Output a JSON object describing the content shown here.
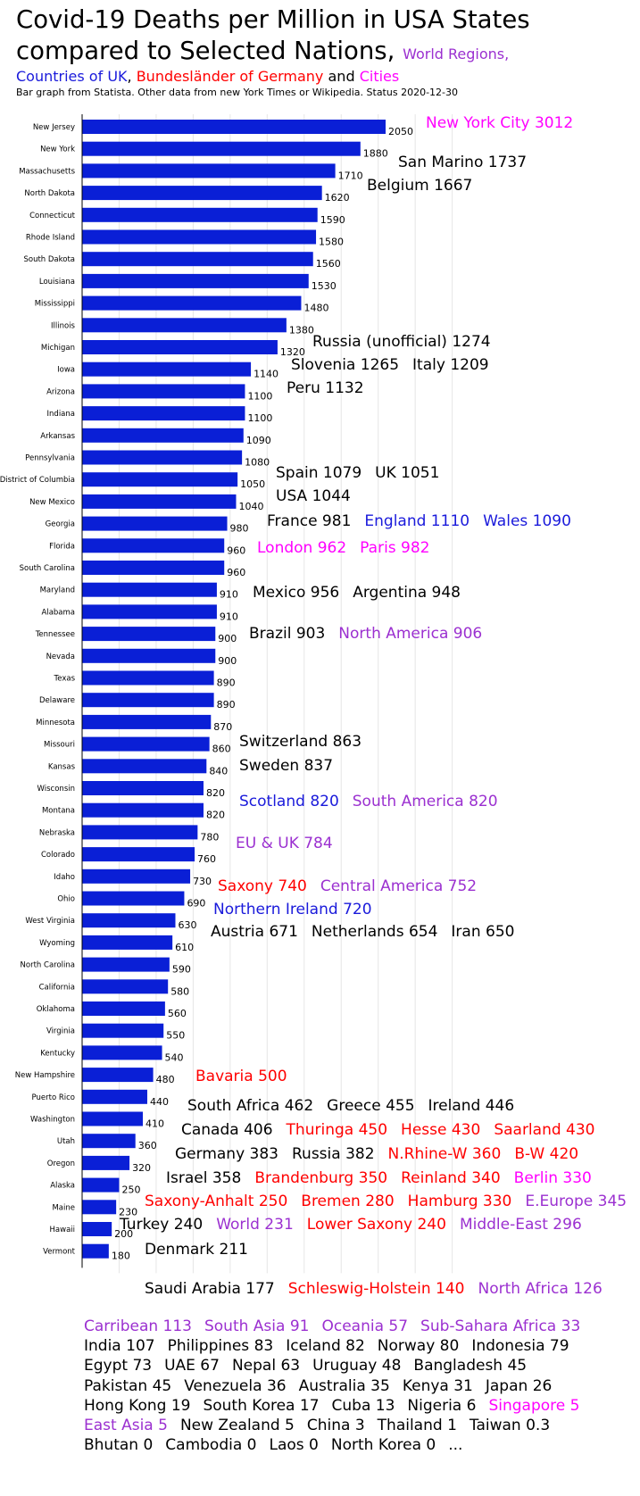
{
  "colors": {
    "bar": "#0a1fd6",
    "country": "#000000",
    "uk": "#1a1adb",
    "germany": "#ff0000",
    "city": "#ff00ff",
    "region": "#9b30d0",
    "grid": "#e6e6e6"
  },
  "title": {
    "line1": "Covid-19 Deaths per Million in USA States",
    "line2_main": "compared to Selected Nations,",
    "line2_regions": "World Regions,",
    "line3_uk": "Countries of UK",
    "line3_sep1": ",",
    "line3_germany": "Bundesländer of Germany",
    "line3_and": "and",
    "line3_cities": "Cities",
    "source": "Bar graph from Statista. Other data from new York Times or Wikipedia. Status 2020-12-30"
  },
  "chart_data": {
    "type": "bar",
    "orientation": "horizontal",
    "categories": [
      "New Jersey",
      "New York",
      "Massachusetts",
      "North Dakota",
      "Connecticut",
      "Rhode Island",
      "South Dakota",
      "Louisiana",
      "Mississippi",
      "Illinois",
      "Michigan",
      "Iowa",
      "Arizona",
      "Indiana",
      "Arkansas",
      "Pennsylvania",
      "District of Columbia",
      "New Mexico",
      "Georgia",
      "Florida",
      "South Carolina",
      "Maryland",
      "Alabama",
      "Tennessee",
      "Nevada",
      "Texas",
      "Delaware",
      "Minnesota",
      "Missouri",
      "Kansas",
      "Wisconsin",
      "Montana",
      "Nebraska",
      "Colorado",
      "Idaho",
      "Ohio",
      "West Virginia",
      "Wyoming",
      "North Carolina",
      "California",
      "Oklahoma",
      "Virginia",
      "Kentucky",
      "New Hampshire",
      "Puerto Rico",
      "Washington",
      "Utah",
      "Oregon",
      "Alaska",
      "Maine",
      "Hawaii",
      "Vermont"
    ],
    "values": [
      2050,
      1880,
      1710,
      1620,
      1590,
      1580,
      1560,
      1530,
      1480,
      1380,
      1320,
      1140,
      1100,
      1100,
      1090,
      1080,
      1050,
      1040,
      980,
      960,
      960,
      910,
      910,
      900,
      900,
      890,
      890,
      870,
      860,
      840,
      820,
      820,
      780,
      760,
      730,
      690,
      630,
      610,
      590,
      580,
      560,
      550,
      540,
      480,
      440,
      410,
      360,
      320,
      250,
      230,
      200,
      180
    ],
    "xlim": [
      0,
      2500
    ],
    "grid": true,
    "legend": "none"
  },
  "comparisons": [
    [
      {
        "t": "New York City 3012",
        "c": "city"
      }
    ],
    [
      {
        "t": "San Marino 1737",
        "c": "country"
      }
    ],
    [
      {
        "t": "Belgium 1667",
        "c": "country"
      }
    ],
    [
      {
        "t": "Russia (unofficial) 1274",
        "c": "country"
      }
    ],
    [
      {
        "t": "Slovenia 1265",
        "c": "country"
      },
      {
        "t": "Italy 1209",
        "c": "country"
      }
    ],
    [
      {
        "t": "Peru 1132",
        "c": "country"
      }
    ],
    [
      {
        "t": "Spain 1079",
        "c": "country"
      },
      {
        "t": "UK 1051",
        "c": "country"
      }
    ],
    [
      {
        "t": "USA 1044",
        "c": "country"
      }
    ],
    [
      {
        "t": "France 981",
        "c": "country"
      },
      {
        "t": "England 1110",
        "c": "uk"
      },
      {
        "t": "Wales 1090",
        "c": "uk"
      }
    ],
    [
      {
        "t": "London 962",
        "c": "city"
      },
      {
        "t": "Paris 982",
        "c": "city"
      }
    ],
    [
      {
        "t": "Mexico 956",
        "c": "country"
      },
      {
        "t": "Argentina 948",
        "c": "country"
      }
    ],
    [
      {
        "t": "Brazil 903",
        "c": "country"
      },
      {
        "t": "North America 906",
        "c": "region"
      }
    ],
    [
      {
        "t": "Switzerland 863",
        "c": "country"
      }
    ],
    [
      {
        "t": "Sweden 837",
        "c": "country"
      }
    ],
    [
      {
        "t": "Scotland 820",
        "c": "uk"
      },
      {
        "t": "South America 820",
        "c": "region"
      }
    ],
    [
      {
        "t": "EU & UK 784",
        "c": "region"
      }
    ],
    [
      {
        "t": "Saxony 740",
        "c": "germany"
      },
      {
        "t": "Central America 752",
        "c": "region"
      }
    ],
    [
      {
        "t": "Northern Ireland 720",
        "c": "uk"
      }
    ],
    [
      {
        "t": "Austria 671",
        "c": "country"
      },
      {
        "t": "Netherlands 654",
        "c": "country"
      },
      {
        "t": "Iran 650",
        "c": "country"
      }
    ],
    [
      {
        "t": "Bavaria 500",
        "c": "germany"
      }
    ],
    [
      {
        "t": "South Africa 462",
        "c": "country"
      },
      {
        "t": "Greece 455",
        "c": "country"
      },
      {
        "t": "Ireland 446",
        "c": "country"
      }
    ],
    [
      {
        "t": "Canada 406",
        "c": "country"
      },
      {
        "t": "Thuringa 450",
        "c": "germany"
      },
      {
        "t": "Hesse 430",
        "c": "germany"
      },
      {
        "t": "Saarland 430",
        "c": "germany"
      }
    ],
    [
      {
        "t": "Germany 383",
        "c": "country"
      },
      {
        "t": "Russia 382",
        "c": "country"
      },
      {
        "t": "N.Rhine-W 360",
        "c": "germany"
      },
      {
        "t": "B-W 420",
        "c": "germany"
      }
    ],
    [
      {
        "t": "Israel 358",
        "c": "country"
      },
      {
        "t": "Brandenburg 350",
        "c": "germany"
      },
      {
        "t": "Reinland 340",
        "c": "germany"
      },
      {
        "t": "Berlin 330",
        "c": "city"
      }
    ],
    [
      {
        "t": "Saxony-Anhalt 250",
        "c": "germany"
      },
      {
        "t": "Bremen 280",
        "c": "germany"
      },
      {
        "t": "Hamburg 330",
        "c": "germany"
      },
      {
        "t": "E.Europe 345",
        "c": "region"
      }
    ],
    [
      {
        "t": "Turkey 240",
        "c": "country"
      },
      {
        "t": "World 231",
        "c": "region"
      },
      {
        "t": "Lower Saxony 240",
        "c": "germany"
      },
      {
        "t": "Middle-East 296",
        "c": "region"
      }
    ],
    [
      {
        "t": "Denmark 211",
        "c": "country"
      }
    ],
    [
      {
        "t": "Saudi Arabia 177",
        "c": "country"
      },
      {
        "t": "Schleswig-Holstein 140",
        "c": "germany"
      },
      {
        "t": "North Africa 126",
        "c": "region"
      }
    ]
  ],
  "footer": [
    [
      {
        "t": "Carribean 113",
        "c": "region"
      },
      {
        "t": "South Asia 91",
        "c": "region"
      },
      {
        "t": "Oceania 57",
        "c": "region"
      },
      {
        "t": "Sub-Sahara Africa 33",
        "c": "region"
      }
    ],
    [
      {
        "t": "India 107",
        "c": "country"
      },
      {
        "t": "Philippines 83",
        "c": "country"
      },
      {
        "t": "Iceland 82",
        "c": "country"
      },
      {
        "t": "Norway 80",
        "c": "country"
      },
      {
        "t": "Indonesia 79",
        "c": "country"
      }
    ],
    [
      {
        "t": "Egypt 73",
        "c": "country"
      },
      {
        "t": "UAE 67",
        "c": "country"
      },
      {
        "t": "Nepal 63",
        "c": "country"
      },
      {
        "t": "Uruguay 48",
        "c": "country"
      },
      {
        "t": "Bangladesh 45",
        "c": "country"
      }
    ],
    [
      {
        "t": "Pakistan 45",
        "c": "country"
      },
      {
        "t": "Venezuela 36",
        "c": "country"
      },
      {
        "t": "Australia 35",
        "c": "country"
      },
      {
        "t": "Kenya 31",
        "c": "country"
      },
      {
        "t": "Japan 26",
        "c": "country"
      }
    ],
    [
      {
        "t": "Hong Kong 19",
        "c": "country"
      },
      {
        "t": "South Korea 17",
        "c": "country"
      },
      {
        "t": "Cuba 13",
        "c": "country"
      },
      {
        "t": "Nigeria 6",
        "c": "country"
      },
      {
        "t": "Singapore 5",
        "c": "city"
      }
    ],
    [
      {
        "t": "East Asia 5",
        "c": "region"
      },
      {
        "t": "New Zealand 5",
        "c": "country"
      },
      {
        "t": "China 3",
        "c": "country"
      },
      {
        "t": "Thailand 1",
        "c": "country"
      },
      {
        "t": "Taiwan 0.3",
        "c": "country"
      }
    ],
    [
      {
        "t": "Bhutan 0",
        "c": "country"
      },
      {
        "t": "Cambodia 0",
        "c": "country"
      },
      {
        "t": "Laos 0",
        "c": "country"
      },
      {
        "t": "North Korea 0",
        "c": "country"
      },
      {
        "t": "...",
        "c": "country"
      }
    ]
  ]
}
